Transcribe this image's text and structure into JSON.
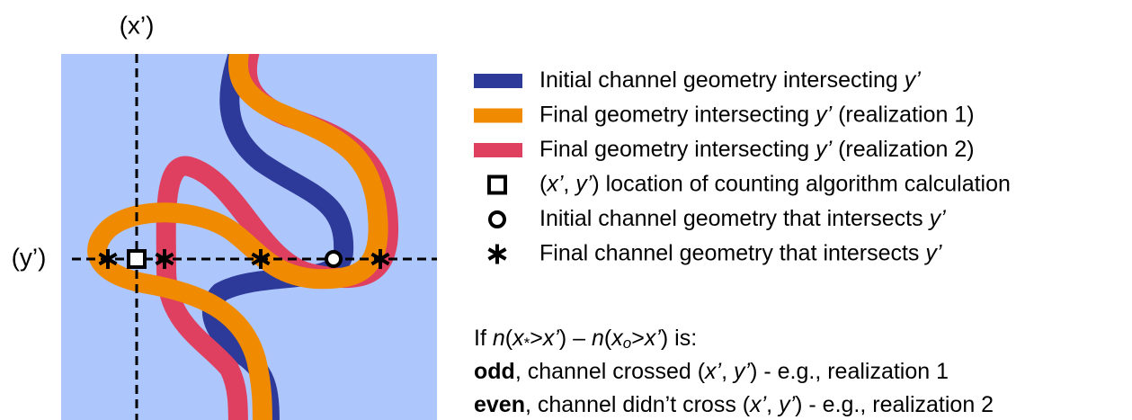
{
  "axis_labels": {
    "x": "(x’)",
    "y": "(y’)"
  },
  "legend": [
    {
      "marker": "swatch",
      "color": "#2e3a9a",
      "parts": [
        {
          "t": "Initial channel geometry intersecting "
        },
        {
          "t": "y’",
          "i": true
        }
      ]
    },
    {
      "marker": "swatch",
      "color": "#f08a00",
      "parts": [
        {
          "t": "Final geometry intersecting "
        },
        {
          "t": "y’",
          "i": true
        },
        {
          "t": " (realization 1)"
        }
      ]
    },
    {
      "marker": "swatch",
      "color": "#e0405f",
      "parts": [
        {
          "t": "Final geometry intersecting "
        },
        {
          "t": "y’",
          "i": true
        },
        {
          "t": " (realization 2)"
        }
      ]
    },
    {
      "marker": "square",
      "parts": [
        {
          "t": "("
        },
        {
          "t": "x’",
          "i": true
        },
        {
          "t": ", "
        },
        {
          "t": "y’",
          "i": true
        },
        {
          "t": ") location of counting algorithm calculation"
        }
      ]
    },
    {
      "marker": "circle",
      "parts": [
        {
          "t": "Initial channel geometry that intersects "
        },
        {
          "t": "y’",
          "i": true
        }
      ]
    },
    {
      "marker": "star",
      "parts": [
        {
          "t": "Final channel geometry that intersects "
        },
        {
          "t": "y’",
          "i": true
        }
      ]
    }
  ],
  "rule": [
    [
      {
        "t": "If "
      },
      {
        "t": "n",
        "i": true
      },
      {
        "t": "("
      },
      {
        "t": "x",
        "i": true
      },
      {
        "t": "*",
        "sub": true
      },
      {
        "t": ">"
      },
      {
        "t": "x’",
        "i": true
      },
      {
        "t": ") – "
      },
      {
        "t": "n",
        "i": true
      },
      {
        "t": "("
      },
      {
        "t": "x",
        "i": true
      },
      {
        "t": "o",
        "i": true,
        "sub": true
      },
      {
        "t": ">"
      },
      {
        "t": "x’",
        "i": true
      },
      {
        "t": ") is:"
      }
    ],
    [
      {
        "t": "odd",
        "b": true
      },
      {
        "t": ", channel crossed ("
      },
      {
        "t": "x’",
        "i": true
      },
      {
        "t": ", "
      },
      {
        "t": "y’",
        "i": true
      },
      {
        "t": ") - e.g., realization 1"
      }
    ],
    [
      {
        "t": "even",
        "b": true
      },
      {
        "t": ", channel didn’t cross ("
      },
      {
        "t": "x’",
        "i": true
      },
      {
        "t": ", "
      },
      {
        "t": "y’",
        "i": true
      },
      {
        "t": ") - e.g., realization 2"
      }
    ]
  ]
}
